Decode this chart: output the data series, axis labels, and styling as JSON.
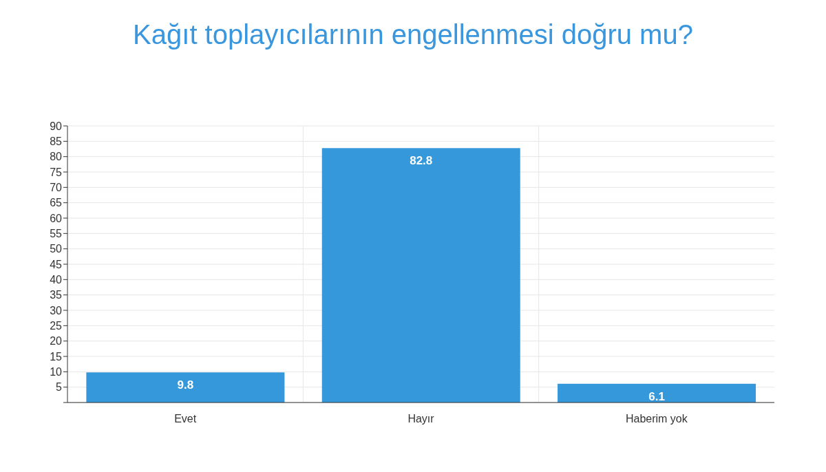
{
  "chart_data": {
    "type": "bar",
    "title": "Kağıt toplayıcılarının engellenmesi doğru mu?",
    "categories": [
      "Evet",
      "Hayır",
      "Haberim yok"
    ],
    "values": [
      9.8,
      82.8,
      6.1
    ],
    "color": "#3598db",
    "ylim": [
      0,
      90
    ],
    "yticks": [
      {
        "value": 0,
        "label": null
      },
      5,
      10,
      15,
      20,
      25,
      30,
      35,
      40,
      45,
      50,
      55,
      60,
      65,
      70,
      75,
      80,
      85,
      90
    ],
    "grid": true,
    "data_labels": true
  }
}
